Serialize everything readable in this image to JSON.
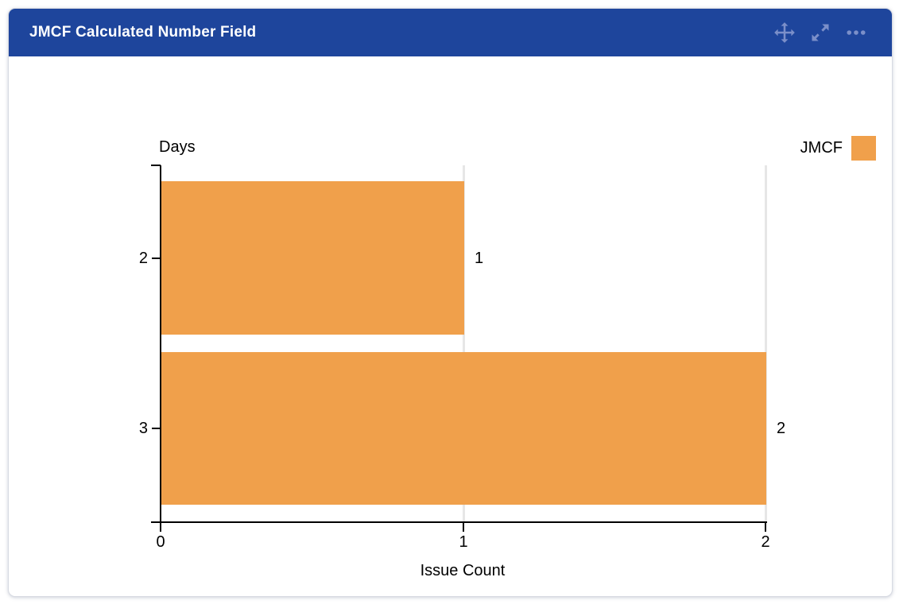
{
  "card": {
    "title": "JMCF Calculated Number Field",
    "header_icons": [
      {
        "name": "move-icon"
      },
      {
        "name": "expand-icon"
      },
      {
        "name": "more-icon"
      }
    ],
    "colors": {
      "header_bg": "#1e459c",
      "header_icon": "#7b8fc9",
      "bar": "#f0a04b",
      "gridline": "#e6e6e6",
      "axis": "#000000",
      "card_border": "#d7dae2"
    }
  },
  "chart_data": {
    "type": "bar",
    "orientation": "horizontal",
    "axis_title": "Days",
    "xlabel": "Issue Count",
    "categories": [
      "2",
      "3"
    ],
    "series": [
      {
        "name": "JMCF",
        "values": [
          1,
          2
        ]
      }
    ],
    "data_labels": [
      "1",
      "2"
    ],
    "x_ticks": [
      "0",
      "1",
      "2"
    ],
    "xlim": [
      0,
      2
    ],
    "grid": true,
    "legend": {
      "label": "JMCF",
      "position": "top-right",
      "swatch_color": "#f0a04b"
    }
  }
}
